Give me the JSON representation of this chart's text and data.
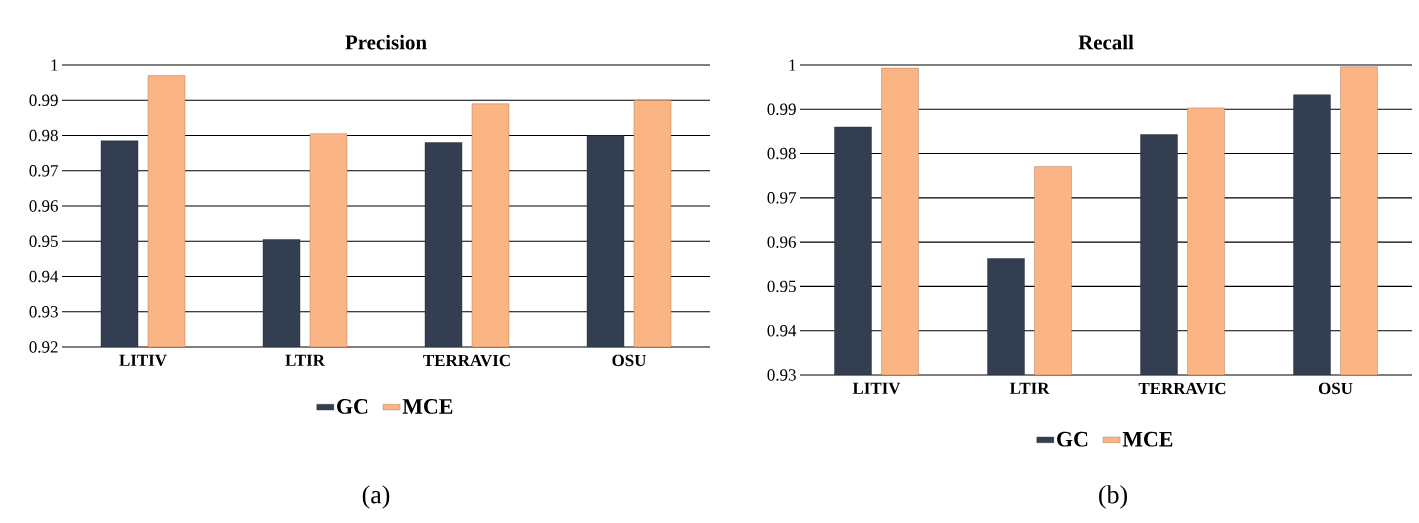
{
  "chart_data": [
    {
      "type": "bar",
      "title": "Precision",
      "categories": [
        "LITIV",
        "LTIR",
        "TERRAVIC",
        "OSU"
      ],
      "series": [
        {
          "name": "GC",
          "color": "#333f50",
          "values": [
            0.9785,
            0.9505,
            0.978,
            0.98
          ]
        },
        {
          "name": "MCE",
          "color": "#fbb584",
          "values": [
            0.997,
            0.9805,
            0.989,
            0.99
          ]
        }
      ],
      "ylim": [
        0.92,
        1
      ],
      "yticks": [
        0.92,
        0.93,
        0.94,
        0.95,
        0.96,
        0.97,
        0.98,
        0.99,
        1
      ],
      "grid": "y",
      "legend": "bottom",
      "annotations": [
        "(a)"
      ]
    },
    {
      "type": "bar",
      "title": "Recall",
      "categories": [
        "LITIV",
        "LTIR",
        "TERRAVIC",
        "OSU"
      ],
      "series": [
        {
          "name": "GC",
          "color": "#333f50",
          "values": [
            0.986,
            0.9563,
            0.9843,
            0.9933
          ]
        },
        {
          "name": "MCE",
          "color": "#fbb584",
          "values": [
            0.9993,
            0.9771,
            0.9903,
            0.9996
          ]
        }
      ],
      "ylim": [
        0.93,
        1
      ],
      "yticks": [
        0.93,
        0.94,
        0.95,
        0.96,
        0.97,
        0.98,
        0.99,
        1
      ],
      "grid": "y",
      "legend": "bottom",
      "annotations": [
        "(b)"
      ]
    }
  ]
}
